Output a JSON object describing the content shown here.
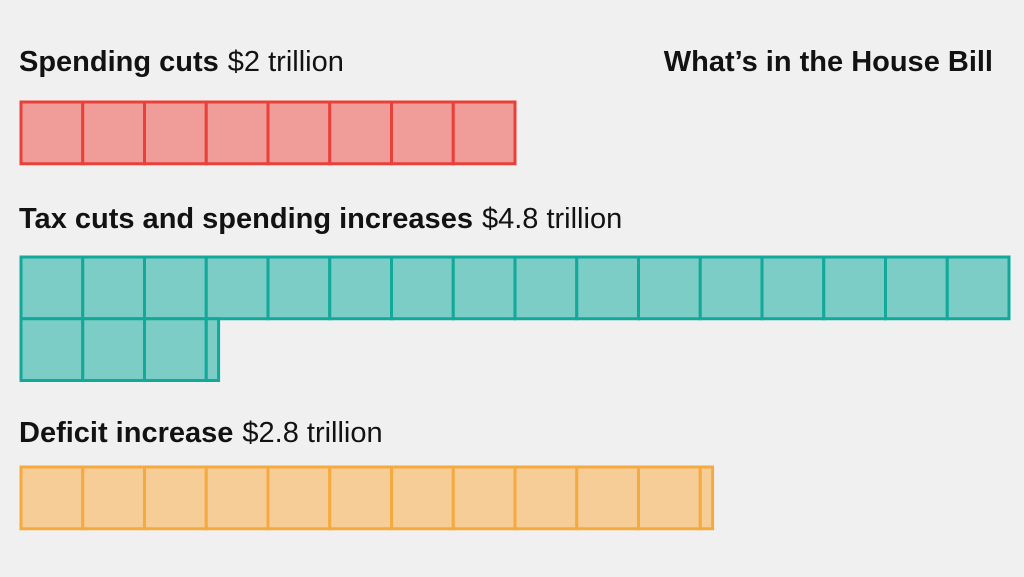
{
  "chart_data": {
    "type": "waffle",
    "title": "What’s in the House Bill",
    "unit_per_square": 0.25,
    "squares_per_row": 16,
    "series": [
      {
        "name": "Spending cuts",
        "value_label": "$2 trillion",
        "value": 2.0,
        "fill": "#f09c98",
        "stroke": "#e9403a"
      },
      {
        "name": "Tax cuts and spending increases",
        "value_label": "$4.8 trillion",
        "value": 4.8,
        "fill": "#7bcdc6",
        "stroke": "#12a89a"
      },
      {
        "name": "Deficit increase",
        "value_label": "$2.8 trillion",
        "value": 2.8,
        "fill": "#f6cd96",
        "stroke": "#f5aa40"
      }
    ]
  }
}
